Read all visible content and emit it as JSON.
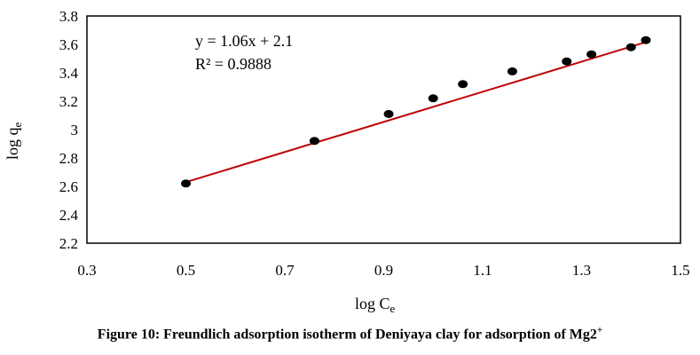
{
  "chart_data": {
    "type": "scatter",
    "xlabel": "log C",
    "xlabel_sub": "e",
    "ylabel": "log q",
    "ylabel_sub": "e",
    "xlim": [
      0.3,
      1.5
    ],
    "ylim": [
      2.2,
      3.8
    ],
    "x_ticks": [
      "0.3",
      "0.5",
      "0.7",
      "0.9",
      "1.1",
      "1.3",
      "1.5"
    ],
    "y_ticks": [
      "2.2",
      "2.4",
      "2.6",
      "2.8",
      "3",
      "3.2",
      "3.4",
      "3.6",
      "3.8"
    ],
    "x_tick_values": [
      0.3,
      0.5,
      0.7,
      0.9,
      1.1,
      1.3,
      1.5
    ],
    "y_tick_values": [
      2.2,
      2.4,
      2.6,
      2.8,
      3.0,
      3.2,
      3.4,
      3.6,
      3.8
    ],
    "series": [
      {
        "points": [
          {
            "x": 0.5,
            "y": 2.62
          },
          {
            "x": 0.76,
            "y": 2.92
          },
          {
            "x": 0.91,
            "y": 3.11
          },
          {
            "x": 1.0,
            "y": 3.22
          },
          {
            "x": 1.06,
            "y": 3.32
          },
          {
            "x": 1.16,
            "y": 3.41
          },
          {
            "x": 1.27,
            "y": 3.48
          },
          {
            "x": 1.32,
            "y": 3.53
          },
          {
            "x": 1.4,
            "y": 3.58
          },
          {
            "x": 1.43,
            "y": 3.63
          }
        ]
      }
    ],
    "trendline": {
      "slope": 1.06,
      "intercept": 2.1,
      "x_range": [
        0.5,
        1.43
      ],
      "equation": "y = 1.06x + 2.1",
      "r_squared": "R² = 0.9888",
      "color": "#c00000"
    },
    "grid": false,
    "legend": "none",
    "point_color": "#000000"
  },
  "caption": {
    "text": "Figure 10: Freundlich adsorption isotherm of Deniyaya clay for adsorption of  Mg2",
    "superscript": "+"
  }
}
